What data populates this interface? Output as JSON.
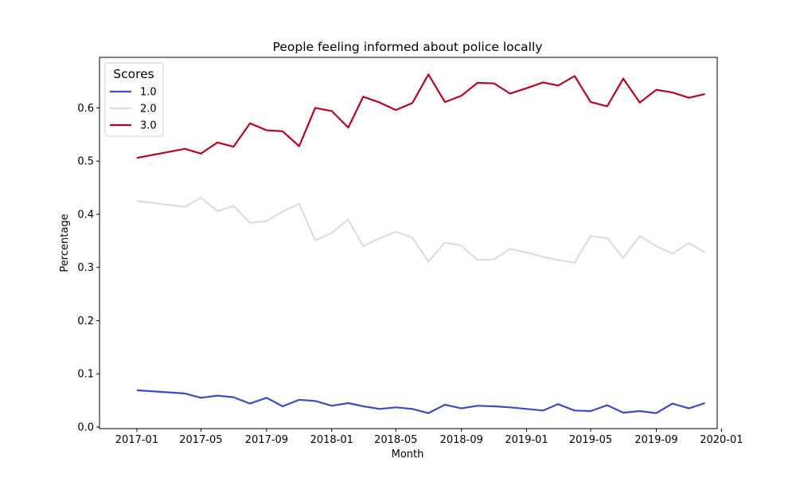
{
  "chart_data": {
    "type": "line",
    "title": "People feeling informed about police locally",
    "xlabel": "Month",
    "ylabel": "Percentage",
    "ylim": [
      -0.003,
      0.695
    ],
    "xlim": [
      "2016-10-23",
      "2019-12-24"
    ],
    "x_ticks": [
      "2017-01",
      "2017-05",
      "2017-09",
      "2018-01",
      "2018-05",
      "2018-09",
      "2019-01",
      "2019-05",
      "2019-09",
      "2020-01"
    ],
    "y_ticks": [
      "0.0",
      "0.1",
      "0.2",
      "0.3",
      "0.4",
      "0.5",
      "0.6"
    ],
    "y_tick_values": [
      0.0,
      0.1,
      0.2,
      0.3,
      0.4,
      0.5,
      0.6
    ],
    "legend": {
      "title": "Scores",
      "position": "top-left"
    },
    "x": [
      "2017-01",
      "2017-04",
      "2017-05",
      "2017-06",
      "2017-07",
      "2017-08",
      "2017-09",
      "2017-10",
      "2017-11",
      "2017-12",
      "2018-01",
      "2018-02",
      "2018-03",
      "2018-04",
      "2018-05",
      "2018-06",
      "2018-07",
      "2018-08",
      "2018-09",
      "2018-10",
      "2018-11",
      "2018-12",
      "2019-01",
      "2019-02",
      "2019-03",
      "2019-04",
      "2019-05",
      "2019-06",
      "2019-07",
      "2019-08",
      "2019-09",
      "2019-10",
      "2019-11",
      "2019-12"
    ],
    "series": [
      {
        "name": "1.0",
        "color": "#3b4cc0",
        "values": [
          0.069,
          0.063,
          0.055,
          0.059,
          0.056,
          0.044,
          0.055,
          0.039,
          0.051,
          0.049,
          0.04,
          0.045,
          0.039,
          0.034,
          0.037,
          0.034,
          0.026,
          0.042,
          0.035,
          0.04,
          0.039,
          0.037,
          0.034,
          0.031,
          0.043,
          0.031,
          0.03,
          0.041,
          0.027,
          0.03,
          0.026,
          0.044,
          0.035,
          0.045
        ]
      },
      {
        "name": "2.0",
        "color": "#dddddd",
        "values": [
          0.425,
          0.414,
          0.431,
          0.406,
          0.416,
          0.384,
          0.387,
          0.405,
          0.42,
          0.351,
          0.365,
          0.39,
          0.34,
          0.355,
          0.367,
          0.356,
          0.311,
          0.347,
          0.341,
          0.314,
          0.315,
          0.335,
          0.328,
          0.32,
          0.314,
          0.309,
          0.359,
          0.355,
          0.318,
          0.359,
          0.34,
          0.326,
          0.346,
          0.328
        ]
      },
      {
        "name": "3.0",
        "color": "#b40426",
        "values": [
          0.506,
          0.523,
          0.514,
          0.535,
          0.527,
          0.571,
          0.558,
          0.556,
          0.528,
          0.6,
          0.594,
          0.563,
          0.621,
          0.61,
          0.596,
          0.609,
          0.663,
          0.611,
          0.623,
          0.647,
          0.646,
          0.627,
          0.637,
          0.648,
          0.642,
          0.66,
          0.611,
          0.603,
          0.655,
          0.61,
          0.634,
          0.629,
          0.619,
          0.626
        ]
      }
    ]
  }
}
